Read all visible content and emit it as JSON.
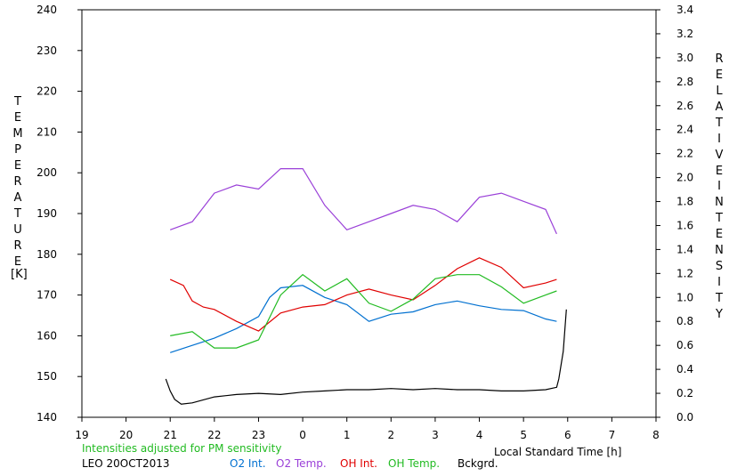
{
  "chart_data": {
    "type": "line",
    "left_axis": {
      "title_letters": [
        "T",
        "E",
        "M",
        "P",
        "E",
        "R",
        "A",
        "T",
        "U",
        "R",
        "E"
      ],
      "unit": "[K]",
      "ylim": [
        140,
        240
      ],
      "ticks": [
        "140",
        "150",
        "160",
        "170",
        "180",
        "190",
        "200",
        "210",
        "220",
        "230",
        "240"
      ]
    },
    "right_axis": {
      "title_word1": [
        "R",
        "E",
        "L",
        "A",
        "T",
        "I",
        "V",
        "E"
      ],
      "title_word2": [
        "I",
        "N",
        "T",
        "E",
        "N",
        "S",
        "I",
        "T",
        "Y"
      ],
      "ylim": [
        0.0,
        3.4
      ],
      "ticks": [
        "0.0",
        "0.2",
        "0.4",
        "0.6",
        "0.8",
        "1.0",
        "1.2",
        "1.4",
        "1.6",
        "1.8",
        "2.0",
        "2.2",
        "2.4",
        "2.6",
        "2.8",
        "3.0",
        "3.2",
        "3.4"
      ]
    },
    "x_axis": {
      "label": "Local Standard Time [h]",
      "ticks": [
        "19",
        "20",
        "21",
        "22",
        "23",
        "0",
        "1",
        "2",
        "3",
        "4",
        "5",
        "6",
        "7",
        "8"
      ]
    },
    "note": "Intensities adjusted for PM sensitivity",
    "site_date": "LEO 20OCT2013",
    "series": [
      {
        "name": "O2 Int.",
        "axis": "right",
        "color": "#0070d0",
        "x": [
          21.0,
          21.5,
          22.0,
          22.5,
          23.0,
          23.25,
          23.5,
          24.0,
          24.5,
          25.0,
          25.5,
          26.0,
          26.5,
          27.0,
          27.5,
          28.0,
          28.5,
          29.0,
          29.5,
          29.75
        ],
        "y": [
          0.54,
          0.6,
          0.66,
          0.74,
          0.84,
          1.0,
          1.08,
          1.1,
          1.0,
          0.94,
          0.8,
          0.86,
          0.88,
          0.94,
          0.97,
          0.93,
          0.9,
          0.89,
          0.82,
          0.8
        ]
      },
      {
        "name": "O2 Temp.",
        "axis": "left",
        "color": "#9a40d8",
        "x": [
          21.0,
          21.5,
          22.0,
          22.5,
          23.0,
          23.5,
          24.0,
          24.5,
          25.0,
          25.5,
          26.0,
          26.5,
          27.0,
          27.5,
          28.0,
          28.5,
          29.0,
          29.5,
          29.75
        ],
        "y": [
          186,
          188,
          195,
          197,
          196,
          201,
          201,
          192,
          186,
          188,
          190,
          192,
          191,
          188,
          194,
          195,
          193,
          191,
          185
        ]
      },
      {
        "name": "OH Int.",
        "axis": "right",
        "color": "#e00000",
        "x": [
          21.0,
          21.3,
          21.5,
          21.75,
          22.0,
          22.5,
          23.0,
          23.5,
          24.0,
          24.5,
          25.0,
          25.5,
          26.0,
          26.5,
          27.0,
          27.5,
          28.0,
          28.5,
          29.0,
          29.5,
          29.75
        ],
        "y": [
          1.15,
          1.1,
          0.97,
          0.92,
          0.9,
          0.8,
          0.72,
          0.87,
          0.92,
          0.94,
          1.02,
          1.07,
          1.02,
          0.98,
          1.1,
          1.24,
          1.33,
          1.25,
          1.08,
          1.12,
          1.15
        ]
      },
      {
        "name": "OH Temp.",
        "axis": "left",
        "color": "#22bb22",
        "x": [
          21.0,
          21.5,
          22.0,
          22.5,
          23.0,
          23.5,
          24.0,
          24.5,
          25.0,
          25.5,
          26.0,
          26.5,
          27.0,
          27.5,
          28.0,
          28.5,
          29.0,
          29.5,
          29.75
        ],
        "y": [
          160,
          161,
          157,
          157,
          159,
          170,
          175,
          171,
          174,
          168,
          166,
          169,
          174,
          175,
          175,
          172,
          168,
          170,
          171
        ]
      },
      {
        "name": "Bckgrd.",
        "axis": "right",
        "color": "#000000",
        "x": [
          20.9,
          21.0,
          21.1,
          21.25,
          21.5,
          22.0,
          22.5,
          23.0,
          23.5,
          24.0,
          24.5,
          25.0,
          25.5,
          26.0,
          26.5,
          27.0,
          27.5,
          28.0,
          28.5,
          29.0,
          29.5,
          29.75,
          29.8,
          29.9,
          29.97
        ],
        "y": [
          0.32,
          0.22,
          0.15,
          0.11,
          0.12,
          0.17,
          0.19,
          0.2,
          0.19,
          0.21,
          0.22,
          0.23,
          0.23,
          0.24,
          0.23,
          0.24,
          0.23,
          0.23,
          0.22,
          0.22,
          0.23,
          0.25,
          0.32,
          0.55,
          0.9
        ]
      }
    ]
  }
}
